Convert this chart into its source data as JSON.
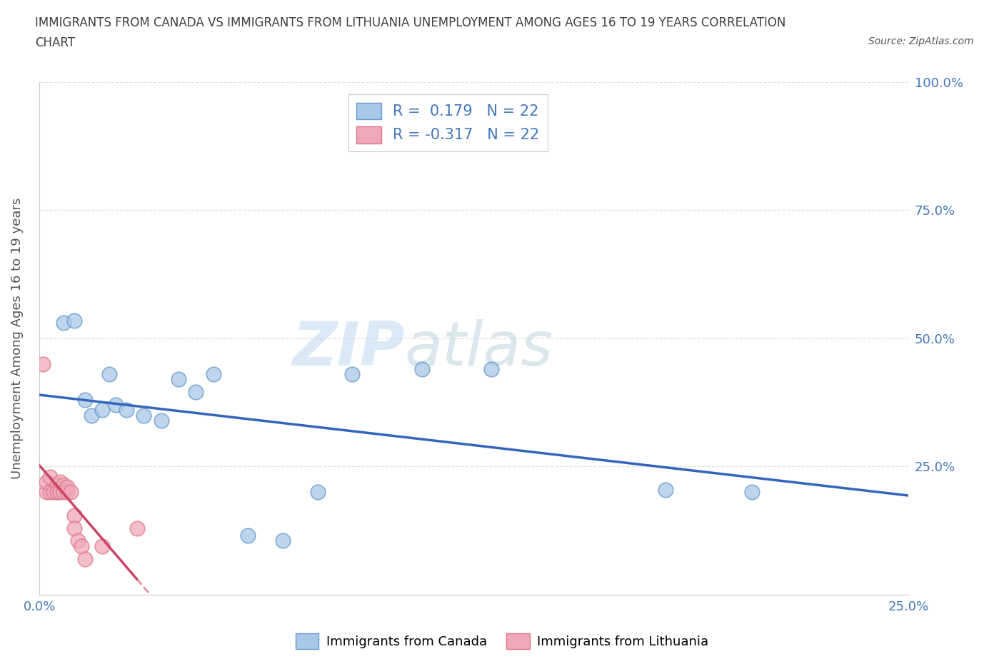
{
  "title_line1": "IMMIGRANTS FROM CANADA VS IMMIGRANTS FROM LITHUANIA UNEMPLOYMENT AMONG AGES 16 TO 19 YEARS CORRELATION",
  "title_line2": "CHART",
  "source": "Source: ZipAtlas.com",
  "ylabel": "Unemployment Among Ages 16 to 19 years",
  "watermark_part1": "ZIP",
  "watermark_part2": "atlas",
  "xlim": [
    0.0,
    0.25
  ],
  "ylim": [
    0.0,
    1.0
  ],
  "x_ticks": [
    0.0,
    0.05,
    0.1,
    0.15,
    0.2,
    0.25
  ],
  "x_tick_labels": [
    "0.0%",
    "",
    "",
    "",
    "",
    "25.0%"
  ],
  "y_ticks": [
    0.0,
    0.25,
    0.5,
    0.75,
    1.0
  ],
  "y_tick_labels_right": [
    "",
    "25.0%",
    "50.0%",
    "75.0%",
    "100.0%"
  ],
  "canada_color": "#a8c8e8",
  "canada_edge": "#6699cc",
  "lithuania_color": "#f0a8b8",
  "lithuania_edge": "#dd7788",
  "canada_R": 0.179,
  "canada_N": 22,
  "lithuania_R": -0.317,
  "lithuania_N": 22,
  "canada_x": [
    0.005,
    0.007,
    0.01,
    0.013,
    0.015,
    0.018,
    0.02,
    0.022,
    0.025,
    0.03,
    0.035,
    0.04,
    0.045,
    0.05,
    0.06,
    0.07,
    0.08,
    0.09,
    0.11,
    0.13,
    0.18,
    0.205
  ],
  "canada_y": [
    0.2,
    0.53,
    0.535,
    0.38,
    0.35,
    0.36,
    0.43,
    0.37,
    0.36,
    0.35,
    0.34,
    0.42,
    0.395,
    0.43,
    0.115,
    0.105,
    0.2,
    0.43,
    0.44,
    0.44,
    0.205,
    0.2
  ],
  "lithuania_x": [
    0.001,
    0.002,
    0.002,
    0.003,
    0.003,
    0.004,
    0.005,
    0.005,
    0.006,
    0.006,
    0.007,
    0.007,
    0.008,
    0.008,
    0.009,
    0.01,
    0.01,
    0.011,
    0.012,
    0.013,
    0.018,
    0.028
  ],
  "lithuania_y": [
    0.45,
    0.2,
    0.22,
    0.2,
    0.23,
    0.2,
    0.215,
    0.2,
    0.2,
    0.22,
    0.215,
    0.2,
    0.2,
    0.21,
    0.2,
    0.155,
    0.13,
    0.105,
    0.095,
    0.07,
    0.095,
    0.13
  ],
  "legend_labels": [
    "Immigrants from Canada",
    "Immigrants from Lithuania"
  ],
  "canada_line_color": "#3366bb",
  "lithuania_line_color": "#cc4466",
  "grid_color": "#dddddd",
  "background_color": "#ffffff",
  "title_color": "#404040",
  "axis_label_color": "#555555",
  "tick_label_color": "#4477bb"
}
